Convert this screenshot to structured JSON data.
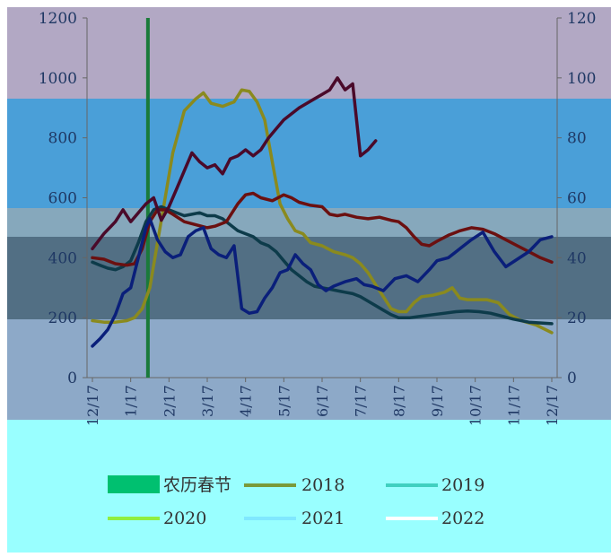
{
  "chart_data": {
    "type": "line",
    "x_labels": [
      "12/17",
      "1/17",
      "2/17",
      "3/17",
      "4/17",
      "5/17",
      "6/17",
      "7/17",
      "8/17",
      "9/17",
      "10/17",
      "11/17",
      "12/17"
    ],
    "y_left": {
      "range": [
        0,
        1200
      ],
      "ticks": [
        0,
        200,
        400,
        600,
        800,
        1000,
        1200
      ]
    },
    "y_right": {
      "range": [
        0,
        120
      ],
      "ticks": [
        0,
        20,
        40,
        60,
        80,
        100,
        120
      ]
    },
    "spring_festival": {
      "label": "农历春节",
      "x": 1.45,
      "color": "#1a7a3a"
    },
    "legend_position": "bottom",
    "series": [
      {
        "name": "2018",
        "color": "#8a8a1e",
        "points": [
          [
            0,
            190
          ],
          [
            0.3,
            185
          ],
          [
            0.6,
            185
          ],
          [
            0.9,
            190
          ],
          [
            1.1,
            200
          ],
          [
            1.3,
            230
          ],
          [
            1.5,
            300
          ],
          [
            1.7,
            450
          ],
          [
            1.9,
            600
          ],
          [
            2.1,
            750
          ],
          [
            2.4,
            890
          ],
          [
            2.7,
            930
          ],
          [
            2.9,
            950
          ],
          [
            3.1,
            915
          ],
          [
            3.4,
            905
          ],
          [
            3.7,
            920
          ],
          [
            3.9,
            960
          ],
          [
            4.1,
            955
          ],
          [
            4.3,
            920
          ],
          [
            4.5,
            860
          ],
          [
            4.7,
            720
          ],
          [
            4.9,
            580
          ],
          [
            5.1,
            530
          ],
          [
            5.3,
            490
          ],
          [
            5.5,
            480
          ],
          [
            5.7,
            450
          ],
          [
            6.0,
            440
          ],
          [
            6.3,
            420
          ],
          [
            6.6,
            410
          ],
          [
            6.8,
            400
          ],
          [
            7.0,
            380
          ],
          [
            7.2,
            350
          ],
          [
            7.4,
            310
          ],
          [
            7.6,
            270
          ],
          [
            7.8,
            230
          ],
          [
            8.0,
            220
          ],
          [
            8.2,
            220
          ],
          [
            8.4,
            250
          ],
          [
            8.6,
            270
          ],
          [
            8.9,
            275
          ],
          [
            9.2,
            285
          ],
          [
            9.4,
            300
          ],
          [
            9.6,
            265
          ],
          [
            9.8,
            260
          ],
          [
            10.0,
            260
          ],
          [
            10.3,
            260
          ],
          [
            10.6,
            250
          ],
          [
            10.9,
            210
          ],
          [
            11.2,
            190
          ],
          [
            11.6,
            175
          ],
          [
            12,
            150
          ]
        ]
      },
      {
        "name": "2019",
        "color": "#0d3b4a",
        "points": [
          [
            0,
            385
          ],
          [
            0.2,
            375
          ],
          [
            0.4,
            365
          ],
          [
            0.6,
            360
          ],
          [
            0.8,
            370
          ],
          [
            1.0,
            390
          ],
          [
            1.2,
            450
          ],
          [
            1.4,
            520
          ],
          [
            1.6,
            560
          ],
          [
            1.8,
            570
          ],
          [
            2.0,
            560
          ],
          [
            2.2,
            550
          ],
          [
            2.4,
            540
          ],
          [
            2.6,
            545
          ],
          [
            2.8,
            550
          ],
          [
            3.0,
            540
          ],
          [
            3.2,
            540
          ],
          [
            3.4,
            530
          ],
          [
            3.6,
            510
          ],
          [
            3.8,
            490
          ],
          [
            4.0,
            480
          ],
          [
            4.2,
            470
          ],
          [
            4.4,
            450
          ],
          [
            4.6,
            440
          ],
          [
            4.8,
            420
          ],
          [
            5.0,
            390
          ],
          [
            5.2,
            360
          ],
          [
            5.4,
            340
          ],
          [
            5.6,
            320
          ],
          [
            5.8,
            305
          ],
          [
            6.0,
            300
          ],
          [
            6.2,
            295
          ],
          [
            6.4,
            290
          ],
          [
            6.6,
            285
          ],
          [
            6.8,
            280
          ],
          [
            7.0,
            270
          ],
          [
            7.2,
            255
          ],
          [
            7.4,
            240
          ],
          [
            7.6,
            225
          ],
          [
            7.8,
            210
          ],
          [
            8.0,
            200
          ],
          [
            8.3,
            200
          ],
          [
            8.6,
            205
          ],
          [
            8.9,
            210
          ],
          [
            9.2,
            215
          ],
          [
            9.5,
            220
          ],
          [
            9.8,
            222
          ],
          [
            10.1,
            220
          ],
          [
            10.4,
            215
          ],
          [
            10.7,
            205
          ],
          [
            11.0,
            195
          ],
          [
            11.4,
            185
          ],
          [
            12,
            180
          ]
        ]
      },
      {
        "name": "2020",
        "color": "#6b1010",
        "points": [
          [
            0,
            400
          ],
          [
            0.3,
            395
          ],
          [
            0.6,
            380
          ],
          [
            0.9,
            375
          ],
          [
            1.1,
            380
          ],
          [
            1.3,
            430
          ],
          [
            1.5,
            520
          ],
          [
            1.7,
            560
          ],
          [
            1.9,
            560
          ],
          [
            2.1,
            545
          ],
          [
            2.4,
            520
          ],
          [
            2.7,
            510
          ],
          [
            3.0,
            500
          ],
          [
            3.2,
            505
          ],
          [
            3.5,
            520
          ],
          [
            3.8,
            580
          ],
          [
            4.0,
            610
          ],
          [
            4.2,
            615
          ],
          [
            4.4,
            600
          ],
          [
            4.7,
            590
          ],
          [
            5.0,
            610
          ],
          [
            5.2,
            600
          ],
          [
            5.4,
            585
          ],
          [
            5.7,
            575
          ],
          [
            6.0,
            570
          ],
          [
            6.2,
            545
          ],
          [
            6.4,
            540
          ],
          [
            6.6,
            545
          ],
          [
            6.9,
            535
          ],
          [
            7.2,
            530
          ],
          [
            7.5,
            535
          ],
          [
            7.8,
            525
          ],
          [
            8.0,
            520
          ],
          [
            8.2,
            500
          ],
          [
            8.4,
            470
          ],
          [
            8.6,
            445
          ],
          [
            8.8,
            440
          ],
          [
            9.0,
            455
          ],
          [
            9.3,
            475
          ],
          [
            9.6,
            490
          ],
          [
            9.9,
            500
          ],
          [
            10.2,
            495
          ],
          [
            10.5,
            480
          ],
          [
            10.8,
            460
          ],
          [
            11.1,
            440
          ],
          [
            11.4,
            420
          ],
          [
            11.7,
            400
          ],
          [
            12,
            385
          ]
        ]
      },
      {
        "name": "2021",
        "color": "#0a1f7a",
        "points": [
          [
            0,
            105
          ],
          [
            0.2,
            130
          ],
          [
            0.4,
            160
          ],
          [
            0.6,
            210
          ],
          [
            0.8,
            280
          ],
          [
            1.0,
            300
          ],
          [
            1.2,
            400
          ],
          [
            1.4,
            500
          ],
          [
            1.5,
            530
          ],
          [
            1.7,
            460
          ],
          [
            1.9,
            420
          ],
          [
            2.1,
            400
          ],
          [
            2.3,
            410
          ],
          [
            2.5,
            470
          ],
          [
            2.7,
            490
          ],
          [
            2.9,
            500
          ],
          [
            3.1,
            430
          ],
          [
            3.3,
            410
          ],
          [
            3.5,
            400
          ],
          [
            3.7,
            440
          ],
          [
            3.9,
            230
          ],
          [
            4.1,
            215
          ],
          [
            4.3,
            220
          ],
          [
            4.5,
            265
          ],
          [
            4.7,
            300
          ],
          [
            4.9,
            350
          ],
          [
            5.1,
            360
          ],
          [
            5.3,
            410
          ],
          [
            5.5,
            380
          ],
          [
            5.7,
            360
          ],
          [
            5.9,
            310
          ],
          [
            6.1,
            290
          ],
          [
            6.3,
            305
          ],
          [
            6.6,
            320
          ],
          [
            6.9,
            330
          ],
          [
            7.1,
            310
          ],
          [
            7.3,
            305
          ],
          [
            7.6,
            290
          ],
          [
            7.9,
            330
          ],
          [
            8.2,
            340
          ],
          [
            8.5,
            320
          ],
          [
            8.8,
            360
          ],
          [
            9.0,
            390
          ],
          [
            9.3,
            400
          ],
          [
            9.6,
            430
          ],
          [
            9.9,
            460
          ],
          [
            10.2,
            485
          ],
          [
            10.5,
            420
          ],
          [
            10.8,
            370
          ],
          [
            11.1,
            395
          ],
          [
            11.4,
            420
          ],
          [
            11.7,
            460
          ],
          [
            12,
            470
          ]
        ]
      },
      {
        "name": "2022",
        "color": "#4a0a2a",
        "points": [
          [
            0,
            430
          ],
          [
            0.3,
            480
          ],
          [
            0.6,
            520
          ],
          [
            0.8,
            560
          ],
          [
            1.0,
            520
          ],
          [
            1.2,
            550
          ],
          [
            1.4,
            580
          ],
          [
            1.6,
            600
          ],
          [
            1.8,
            525
          ],
          [
            2.0,
            570
          ],
          [
            2.2,
            630
          ],
          [
            2.4,
            690
          ],
          [
            2.6,
            750
          ],
          [
            2.8,
            720
          ],
          [
            3.0,
            700
          ],
          [
            3.2,
            710
          ],
          [
            3.4,
            680
          ],
          [
            3.6,
            730
          ],
          [
            3.8,
            740
          ],
          [
            4.0,
            760
          ],
          [
            4.2,
            740
          ],
          [
            4.4,
            760
          ],
          [
            4.6,
            800
          ],
          [
            4.8,
            830
          ],
          [
            5.0,
            860
          ],
          [
            5.2,
            880
          ],
          [
            5.4,
            900
          ],
          [
            5.6,
            915
          ],
          [
            5.8,
            930
          ],
          [
            6.0,
            945
          ],
          [
            6.2,
            960
          ],
          [
            6.4,
            1000
          ],
          [
            6.6,
            960
          ],
          [
            6.8,
            980
          ],
          [
            7.0,
            740
          ],
          [
            7.2,
            760
          ],
          [
            7.4,
            790
          ]
        ]
      }
    ]
  }
}
